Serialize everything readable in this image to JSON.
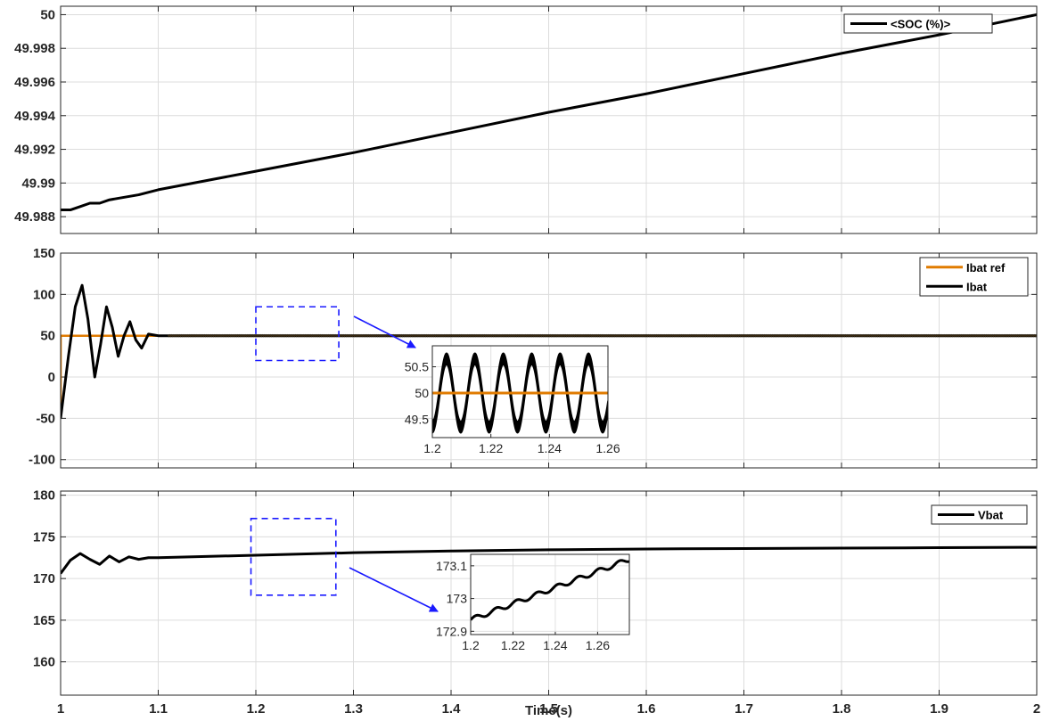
{
  "chart_data": [
    {
      "type": "line",
      "title": "",
      "xlabel": "",
      "ylabel": "",
      "xlim": [
        1,
        2
      ],
      "ylim": [
        49.987,
        50.0005
      ],
      "grid": true,
      "legend_position": "top-right",
      "x_ticks": [
        1,
        1.1,
        1.2,
        1.3,
        1.4,
        1.5,
        1.6,
        1.7,
        1.8,
        1.9,
        2
      ],
      "y_ticks": [
        49.988,
        49.99,
        49.992,
        49.994,
        49.996,
        49.998,
        50
      ],
      "y_tick_labels": [
        "49.988",
        "49.99",
        "49.992",
        "49.994",
        "49.996",
        "49.998",
        "50"
      ],
      "series": [
        {
          "name": "<SOC (%)>",
          "color": "#000000",
          "x": [
            1,
            1.01,
            1.02,
            1.03,
            1.04,
            1.05,
            1.06,
            1.08,
            1.1,
            1.2,
            1.3,
            1.4,
            1.5,
            1.6,
            1.7,
            1.8,
            1.9,
            2
          ],
          "y": [
            49.9884,
            49.9884,
            49.9886,
            49.9888,
            49.9888,
            49.989,
            49.9891,
            49.9893,
            49.9896,
            49.9907,
            49.9918,
            49.993,
            49.9942,
            49.9953,
            49.9965,
            49.9977,
            49.9988,
            50.0
          ]
        }
      ]
    },
    {
      "type": "line",
      "title": "",
      "xlabel": "",
      "ylabel": "",
      "xlim": [
        1,
        2
      ],
      "ylim": [
        -110,
        150
      ],
      "grid": true,
      "legend_position": "top-right",
      "x_ticks": [
        1,
        1.1,
        1.2,
        1.3,
        1.4,
        1.5,
        1.6,
        1.7,
        1.8,
        1.9,
        2
      ],
      "y_ticks": [
        -100,
        -50,
        0,
        50,
        100,
        150
      ],
      "y_tick_labels": [
        "-100",
        "-50",
        "0",
        "50",
        "100",
        "150"
      ],
      "series": [
        {
          "name": "Ibat ref",
          "color": "#E07B00",
          "x": [
            1,
            1.0001,
            2
          ],
          "y": [
            -50,
            50,
            50
          ]
        },
        {
          "name": "Ibat",
          "color": "#000000",
          "x": [
            1,
            1.008,
            1.015,
            1.022,
            1.028,
            1.035,
            1.041,
            1.047,
            1.053,
            1.059,
            1.065,
            1.071,
            1.077,
            1.083,
            1.09,
            1.1,
            1.11,
            2
          ],
          "y": [
            -50,
            25,
            85,
            111,
            70,
            0,
            40,
            85,
            60,
            25,
            50,
            67,
            45,
            35,
            52,
            50,
            50,
            50
          ]
        }
      ],
      "annotation_box": {
        "x": [
          1.2,
          1.285
        ],
        "y": [
          20,
          85
        ]
      },
      "inset": {
        "xlim": [
          1.2,
          1.26
        ],
        "ylim": [
          49.15,
          50.9
        ],
        "x_ticks": [
          1.2,
          1.22,
          1.24,
          1.26
        ],
        "x_tick_labels": [
          "1.2",
          "1.22",
          "1.24",
          "1.26"
        ],
        "y_ticks": [
          49.5,
          50,
          50.5
        ],
        "y_tick_labels": [
          "49.5",
          "50",
          "50.5"
        ],
        "oscillation": {
          "center": 50,
          "amplitude": 0.65,
          "period": 0.0097,
          "thickness": 0.22
        }
      }
    },
    {
      "type": "line",
      "title": "",
      "xlabel": "Time(s)",
      "ylabel": "",
      "xlim": [
        1,
        2
      ],
      "ylim": [
        156,
        180.5
      ],
      "grid": true,
      "legend_position": "top-right",
      "x_ticks": [
        1,
        1.1,
        1.2,
        1.3,
        1.4,
        1.5,
        1.6,
        1.7,
        1.8,
        1.9,
        2
      ],
      "x_tick_labels": [
        "1",
        "1.1",
        "1.2",
        "1.3",
        "1.4",
        "1.5",
        "1.6",
        "1.7",
        "1.8",
        "1.9",
        "2"
      ],
      "y_ticks": [
        160,
        165,
        170,
        175,
        180
      ],
      "y_tick_labels": [
        "160",
        "165",
        "170",
        "175",
        "180"
      ],
      "series": [
        {
          "name": "Vbat",
          "color": "#000000",
          "x": [
            1,
            1.01,
            1.02,
            1.03,
            1.04,
            1.05,
            1.06,
            1.07,
            1.08,
            1.09,
            1.1,
            1.2,
            1.3,
            1.4,
            1.5,
            1.6,
            1.7,
            1.8,
            1.9,
            2
          ],
          "y": [
            170.6,
            172.2,
            173.0,
            172.3,
            171.7,
            172.7,
            172.0,
            172.6,
            172.3,
            172.5,
            172.5,
            172.8,
            173.1,
            173.3,
            173.45,
            173.55,
            173.6,
            173.65,
            173.7,
            173.75
          ]
        }
      ],
      "annotation_box": {
        "x": [
          1.195,
          1.282
        ],
        "y": [
          168,
          177.2
        ]
      },
      "inset": {
        "xlim": [
          1.2,
          1.275
        ],
        "ylim": [
          172.89,
          173.135
        ],
        "x_ticks": [
          1.2,
          1.22,
          1.24,
          1.26
        ],
        "x_tick_labels": [
          "1.2",
          "1.22",
          "1.24",
          "1.26"
        ],
        "y_ticks": [
          172.9,
          173,
          173.1
        ],
        "y_tick_labels": [
          "172.9",
          "173",
          "173.1"
        ],
        "trend": {
          "start": 172.935,
          "end": 173.12,
          "ripple_amplitude": 0.007,
          "period": 0.0097
        }
      }
    }
  ]
}
